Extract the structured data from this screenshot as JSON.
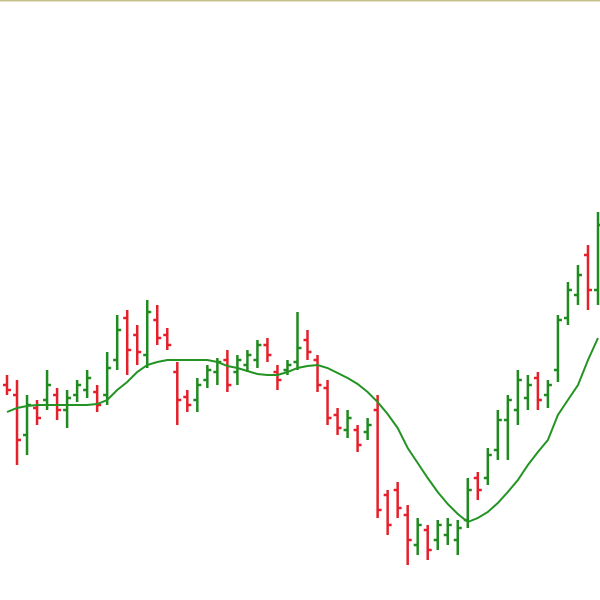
{
  "chart_data": {
    "type": "ohlc",
    "ylim": [
      0,
      600
    ],
    "up_color": "#1f8a1f",
    "down_color": "#e3202b",
    "open": [
      215,
      205,
      165,
      192,
      200,
      205,
      190,
      205,
      210,
      208,
      205,
      240,
      282,
      265,
      245,
      280,
      265,
      228,
      203,
      200,
      220,
      228,
      240,
      228,
      235,
      240,
      255,
      228,
      230,
      238,
      260,
      240,
      212,
      185,
      170,
      170,
      168,
      190,
      105,
      110,
      85,
      55,
      70,
      60,
      65,
      60,
      80,
      122,
      122,
      150,
      180,
      190,
      202,
      222,
      205,
      230,
      282,
      305,
      345,
      310
    ],
    "high": [
      225,
      220,
      205,
      200,
      230,
      212,
      210,
      220,
      230,
      215,
      248,
      285,
      290,
      275,
      300,
      295,
      272,
      238,
      210,
      222,
      235,
      242,
      250,
      245,
      250,
      260,
      262,
      235,
      240,
      288,
      270,
      245,
      220,
      192,
      190,
      175,
      182,
      205,
      110,
      118,
      95,
      82,
      75,
      80,
      82,
      80,
      122,
      128,
      152,
      190,
      205,
      230,
      225,
      228,
      220,
      285,
      318,
      335,
      355,
      388
    ],
    "low": [
      205,
      135,
      145,
      175,
      190,
      180,
      172,
      198,
      202,
      188,
      195,
      230,
      225,
      235,
      232,
      255,
      250,
      175,
      188,
      188,
      212,
      215,
      208,
      215,
      228,
      232,
      238,
      210,
      225,
      230,
      240,
      208,
      175,
      165,
      162,
      148,
      160,
      82,
      65,
      82,
      35,
      45,
      40,
      50,
      55,
      45,
      72,
      100,
      115,
      140,
      140,
      175,
      190,
      190,
      192,
      218,
      275,
      295,
      290,
      295
    ],
    "close": [
      210,
      160,
      195,
      182,
      215,
      190,
      202,
      215,
      222,
      195,
      232,
      270,
      250,
      248,
      288,
      262,
      255,
      200,
      195,
      215,
      230,
      238,
      215,
      240,
      245,
      255,
      245,
      220,
      235,
      252,
      248,
      215,
      182,
      172,
      182,
      155,
      175,
      90,
      75,
      92,
      60,
      75,
      50,
      75,
      75,
      72,
      110,
      110,
      145,
      180,
      200,
      220,
      215,
      200,
      215,
      280,
      310,
      325,
      310,
      375
    ],
    "ma": {
      "color": "#239423",
      "values": [
        188,
        192,
        194,
        195,
        195,
        195,
        195,
        195,
        195,
        196,
        200,
        210,
        218,
        228,
        235,
        238,
        240,
        240,
        240,
        240,
        240,
        238,
        234,
        232,
        229,
        226,
        225,
        225,
        228,
        232,
        234,
        235,
        232,
        227,
        222,
        216,
        208,
        198,
        186,
        172,
        152,
        137,
        122,
        108,
        96,
        86,
        78,
        82,
        88,
        97,
        108,
        120,
        135,
        148,
        160,
        185,
        200,
        215,
        240,
        262
      ]
    }
  }
}
